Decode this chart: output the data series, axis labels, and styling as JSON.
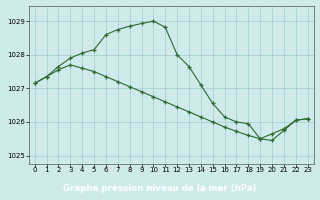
{
  "line1_x": [
    0,
    1,
    2,
    3,
    4,
    5,
    6,
    7,
    8,
    9,
    10,
    11,
    12,
    13,
    14,
    15,
    16,
    17,
    18,
    19,
    20,
    21,
    22,
    23
  ],
  "line1_y": [
    1027.15,
    1027.35,
    1027.55,
    1027.7,
    1027.6,
    1027.5,
    1027.35,
    1027.2,
    1027.05,
    1026.9,
    1026.75,
    1026.6,
    1026.45,
    1026.3,
    1026.15,
    1026.0,
    1025.85,
    1025.72,
    1025.6,
    1025.5,
    1025.65,
    1025.8,
    1026.05,
    1026.1
  ],
  "line2_x": [
    0,
    1,
    2,
    3,
    4,
    5,
    6,
    7,
    8,
    9,
    10,
    11,
    12,
    13,
    14,
    15,
    16,
    17,
    18,
    19,
    20,
    21,
    22,
    23
  ],
  "line2_y": [
    1027.15,
    1027.35,
    1027.65,
    1027.9,
    1028.05,
    1028.15,
    1028.6,
    1028.75,
    1028.85,
    1028.93,
    1029.0,
    1028.82,
    1028.0,
    1027.65,
    1027.1,
    1026.55,
    1026.15,
    1026.0,
    1025.95,
    1025.5,
    1025.45,
    1025.75,
    1026.05,
    1026.1
  ],
  "line_color": "#2d6a2d",
  "bg_color": "#ceeaea",
  "grid_color": "#9fcece",
  "xlabel": "Graphe pression niveau de la mer (hPa)",
  "xlabel_bg": "#336633",
  "xlabel_color": "#ffffff",
  "ylim": [
    1024.75,
    1029.45
  ],
  "yticks": [
    1025,
    1026,
    1027,
    1028,
    1029
  ],
  "xticks": [
    0,
    1,
    2,
    3,
    4,
    5,
    6,
    7,
    8,
    9,
    10,
    11,
    12,
    13,
    14,
    15,
    16,
    17,
    18,
    19,
    20,
    21,
    22,
    23
  ],
  "marker": "+",
  "figwidth": 3.2,
  "figheight": 2.0,
  "dpi": 100
}
